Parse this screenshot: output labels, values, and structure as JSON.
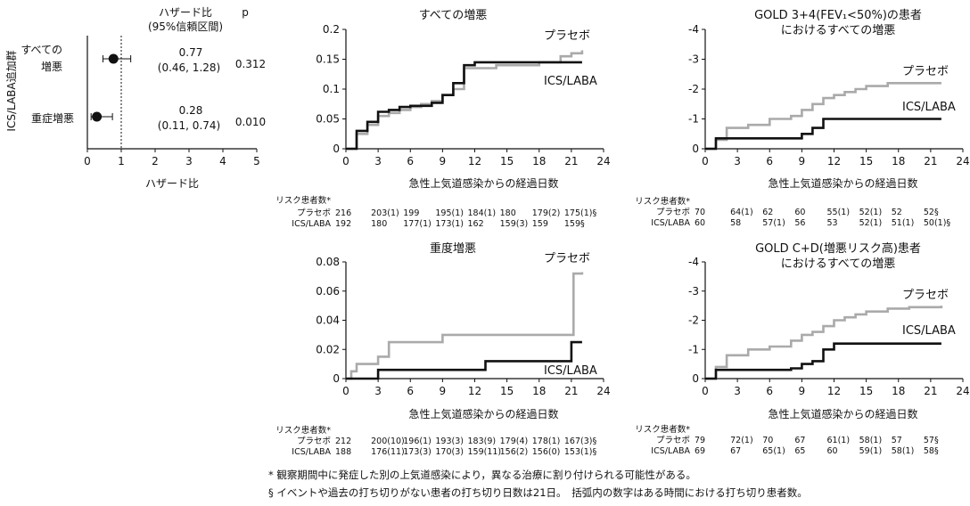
{
  "forest": {
    "header_hr": "ハザード比",
    "header_ci": "(95%信頼区間)",
    "header_p": "p",
    "ylabel": "ICS/LABA追加群",
    "xlabel": "ハザード比",
    "xlim": [
      0,
      5
    ],
    "xticks": [
      "0",
      "1",
      "2",
      "3",
      "4",
      "5"
    ],
    "ref_line": 1,
    "rows": [
      {
        "label1": "すべての",
        "label2": "増悪",
        "hr": 0.77,
        "lo": 0.46,
        "hi": 1.28,
        "hr_text": "0.77",
        "ci_text": "(0.46, 1.28)",
        "p": "0.312"
      },
      {
        "label1": "重症増悪",
        "label2": "",
        "hr": 0.28,
        "lo": 0.11,
        "hi": 0.74,
        "hr_text": "0.28",
        "ci_text": "(0.11, 0.74)",
        "p": "0.010"
      }
    ]
  },
  "chart_data": [
    {
      "type": "line",
      "step": true,
      "title": "すべての増悪",
      "xlabel": "急性上気道感染からの経過日数",
      "xlim": [
        0,
        24
      ],
      "ylim": [
        0,
        0.2
      ],
      "xticks": [
        "0",
        "3",
        "6",
        "9",
        "12",
        "15",
        "18",
        "21",
        "24"
      ],
      "yticks": [
        "0",
        "0.05",
        "0.1",
        "0.15",
        "0.2"
      ],
      "series": [
        {
          "name": "プラセボ",
          "color": "#aaaaaa",
          "x": [
            0,
            1,
            2,
            3,
            4,
            5,
            6,
            7,
            8,
            9,
            10,
            11,
            14,
            18,
            20,
            21,
            22
          ],
          "y": [
            0,
            0.025,
            0.04,
            0.055,
            0.06,
            0.065,
            0.07,
            0.075,
            0.08,
            0.09,
            0.1,
            0.135,
            0.14,
            0.145,
            0.155,
            0.16,
            0.165
          ]
        },
        {
          "name": "ICS/LABA",
          "color": "#111111",
          "x": [
            0,
            1,
            2,
            3,
            4,
            5,
            6,
            8,
            9,
            10,
            11,
            12,
            22
          ],
          "y": [
            0,
            0.03,
            0.045,
            0.062,
            0.065,
            0.07,
            0.072,
            0.077,
            0.09,
            0.11,
            0.14,
            0.145,
            0.145
          ]
        }
      ],
      "risk_label": "リスク患者数*",
      "risk_rows": [
        {
          "name": "プラセボ",
          "values": [
            "216",
            "203(1)",
            "199",
            "195(1)",
            "184(1)",
            "180",
            "179(2)",
            "175(1)§"
          ]
        },
        {
          "name": "ICS/LABA",
          "values": [
            "192",
            "180",
            "177(1)",
            "173(1)",
            "162",
            "159(3)",
            "159",
            "159§"
          ]
        }
      ]
    },
    {
      "type": "line",
      "step": true,
      "title": "GOLD 3+4(FEV₁<50%)の患者",
      "title2": "におけるすべての増悪",
      "xlabel": "急性上気道感染からの経過日数",
      "xlim": [
        0,
        24
      ],
      "ylim": [
        0,
        -4
      ],
      "xticks": [
        "0",
        "3",
        "6",
        "9",
        "12",
        "15",
        "18",
        "21",
        "24"
      ],
      "yticks": [
        "0",
        "-1",
        "-2",
        "-3",
        "-4"
      ],
      "series": [
        {
          "name": "プラセボ",
          "color": "#aaaaaa",
          "x": [
            0,
            1,
            2,
            4,
            6,
            8,
            9,
            10,
            11,
            12,
            13,
            14,
            15,
            17,
            22
          ],
          "y": [
            0,
            -0.3,
            -0.7,
            -0.8,
            -1,
            -1.1,
            -1.3,
            -1.5,
            -1.7,
            -1.8,
            -1.9,
            -2.0,
            -2.1,
            -2.2,
            -2.2
          ]
        },
        {
          "name": "ICS/LABA",
          "color": "#111111",
          "x": [
            0,
            1,
            9,
            10,
            11,
            22
          ],
          "y": [
            0,
            -0.35,
            -0.5,
            -0.7,
            -1.0,
            -1.0
          ]
        }
      ],
      "risk_label": "リスク患者数*",
      "risk_rows": [
        {
          "name": "プラセボ",
          "values": [
            "70",
            "64(1)",
            "62",
            "60",
            "55(1)",
            "52(1)",
            "52",
            "52§"
          ]
        },
        {
          "name": "ICS/LABA",
          "values": [
            "60",
            "58",
            "57(1)",
            "56",
            "53",
            "52(1)",
            "51(1)",
            "50(1)§"
          ]
        }
      ]
    },
    {
      "type": "line",
      "step": true,
      "title": "重度増悪",
      "xlabel": "急性上気道感染からの経過日数",
      "xlim": [
        0,
        24
      ],
      "ylim": [
        0,
        0.08
      ],
      "xticks": [
        "0",
        "3",
        "6",
        "9",
        "12",
        "15",
        "18",
        "21",
        "24"
      ],
      "yticks": [
        "0",
        "0.02",
        "0.04",
        "0.06",
        "0.08"
      ],
      "series": [
        {
          "name": "プラセボ",
          "color": "#aaaaaa",
          "x": [
            0,
            0.5,
            1,
            3,
            4,
            6,
            9,
            21,
            21.2,
            22
          ],
          "y": [
            0,
            0.005,
            0.01,
            0.015,
            0.025,
            0.025,
            0.03,
            0.03,
            0.072,
            0.073
          ]
        },
        {
          "name": "ICS/LABA",
          "color": "#111111",
          "x": [
            0,
            3,
            13,
            21,
            22
          ],
          "y": [
            0,
            0.006,
            0.012,
            0.025,
            0.025
          ]
        }
      ],
      "risk_label": "リスク患者数*",
      "risk_rows": [
        {
          "name": "プラセボ",
          "values": [
            "212",
            "200(10)",
            "196(1)",
            "193(3)",
            "183(9)",
            "179(4)",
            "178(1)",
            "167(3)§"
          ]
        },
        {
          "name": "ICS/LABA",
          "values": [
            "188",
            "176(11)",
            "173(3)",
            "170(3)",
            "159(11)",
            "156(2)",
            "156(0)",
            "153(1)§"
          ]
        }
      ]
    },
    {
      "type": "line",
      "step": true,
      "title": "GOLD C+D(増悪リスク高)患者",
      "title2": "におけるすべての増悪",
      "xlabel": "急性上気道感染からの経過日数",
      "xlim": [
        0,
        24
      ],
      "ylim": [
        0,
        -4
      ],
      "xticks": [
        "0",
        "3",
        "6",
        "9",
        "12",
        "15",
        "18",
        "21",
        "24"
      ],
      "yticks": [
        "0",
        "-1",
        "-2",
        "-3",
        "-4"
      ],
      "series": [
        {
          "name": "プラセボ",
          "color": "#aaaaaa",
          "x": [
            0,
            1,
            2,
            4,
            6,
            8,
            9,
            10,
            11,
            12,
            13,
            14,
            15,
            17,
            19,
            22
          ],
          "y": [
            0,
            -0.4,
            -0.8,
            -1.0,
            -1.1,
            -1.3,
            -1.5,
            -1.6,
            -1.8,
            -2.0,
            -2.1,
            -2.2,
            -2.3,
            -2.4,
            -2.45,
            -2.5
          ]
        },
        {
          "name": "ICS/LABA",
          "color": "#111111",
          "x": [
            0,
            1,
            8,
            9,
            10,
            11,
            12,
            22
          ],
          "y": [
            0,
            -0.3,
            -0.35,
            -0.5,
            -0.6,
            -1.0,
            -1.2,
            -1.2
          ]
        }
      ],
      "risk_label": "リスク患者数*",
      "risk_rows": [
        {
          "name": "プラセボ",
          "values": [
            "79",
            "72(1)",
            "70",
            "67",
            "61(1)",
            "58(1)",
            "57",
            "57§"
          ]
        },
        {
          "name": "ICS/LABA",
          "values": [
            "69",
            "67",
            "65(1)",
            "65",
            "60",
            "59(1)",
            "58(1)",
            "58§"
          ]
        }
      ]
    }
  ],
  "footnotes": [
    "* 観察期間中に発症した別の上気道感染により，異なる治療に割り付けられる可能性がある。",
    "§ イベントや過去の打ち切りがない患者の打ち切り日数は21日。　括弧内の数字はある時間における打ち切り患者数。"
  ]
}
